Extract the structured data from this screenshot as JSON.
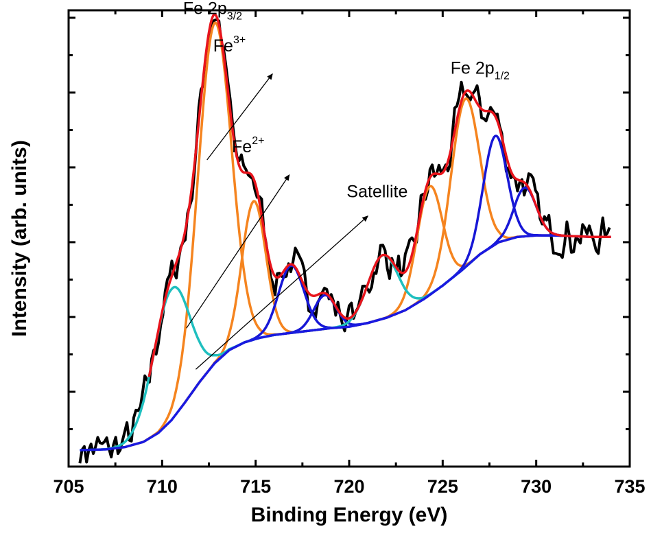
{
  "chart_data": {
    "type": "line",
    "xlabel": "Binding Energy (eV)",
    "ylabel": "Intensity (arb. units)",
    "xlim": [
      705,
      735
    ],
    "ylim": [
      0,
      6.1
    ],
    "x_ticks": [
      "705",
      "710",
      "715",
      "720",
      "725",
      "730",
      "735"
    ],
    "y_tick_labels_shown": false,
    "grid": false,
    "legend": "none",
    "colors": {
      "raw": "#000000",
      "envelope": "#e8141c",
      "fe3": "#f5841f",
      "fe2": "#1717d6",
      "satellite": "#1fbfbf",
      "background": "#1a1ae0"
    },
    "background": {
      "x": [
        705.6,
        707.0,
        708.0,
        709.0,
        709.8,
        710.5,
        711.2,
        712.0,
        712.8,
        713.6,
        714.4,
        715.2,
        716.0,
        717.0,
        718.0,
        719.0,
        720.0,
        721.0,
        722.0,
        723.0,
        724.0,
        725.0,
        726.0,
        727.0,
        728.0,
        729.0,
        730.0,
        731.0,
        732.0,
        733.0,
        734.0
      ],
      "values": [
        0.22,
        0.23,
        0.26,
        0.33,
        0.45,
        0.62,
        0.85,
        1.13,
        1.38,
        1.56,
        1.66,
        1.72,
        1.76,
        1.79,
        1.82,
        1.85,
        1.87,
        1.92,
        1.99,
        2.09,
        2.24,
        2.42,
        2.62,
        2.84,
        3.0,
        3.07,
        3.09,
        3.09,
        3.08,
        3.07,
        3.07
      ]
    },
    "components": [
      {
        "label": "Fe3+",
        "color_key": "fe3",
        "center": 712.8,
        "height": 4.55,
        "fwhm": 2.1
      },
      {
        "label": "Fe3+",
        "color_key": "fe3",
        "center": 714.9,
        "height": 1.85,
        "fwhm": 1.5
      },
      {
        "label": "Fe3+",
        "color_key": "fe3",
        "center": 724.3,
        "height": 1.45,
        "fwhm": 1.6
      },
      {
        "label": "Fe3+",
        "color_key": "fe3",
        "center": 726.2,
        "height": 2.25,
        "fwhm": 1.8
      },
      {
        "label": "Fe2+",
        "color_key": "fe2",
        "center": 716.9,
        "height": 0.9,
        "fwhm": 1.6
      },
      {
        "label": "Fe2+",
        "color_key": "fe2",
        "center": 718.7,
        "height": 0.45,
        "fwhm": 1.4
      },
      {
        "label": "Fe2+",
        "color_key": "fe2",
        "center": 727.8,
        "height": 1.45,
        "fwhm": 1.5
      },
      {
        "label": "Fe2+",
        "color_key": "fe2",
        "center": 729.4,
        "height": 0.65,
        "fwhm": 1.4
      },
      {
        "label": "Satellite",
        "color_key": "satellite",
        "center": 710.5,
        "height": 1.75,
        "fwhm": 2.3
      },
      {
        "label": "Satellite",
        "color_key": "satellite",
        "center": 721.8,
        "height": 0.85,
        "fwhm": 1.9
      }
    ],
    "raw_noise": {
      "amplitude": 0.32,
      "seed": 7
    },
    "annotations": {
      "fe2p32": {
        "main": "Fe 2p",
        "sub": "3/2",
        "x": 712.7,
        "y": 6.05
      },
      "fe2p12": {
        "main": "Fe 2p",
        "sub": "1/2",
        "x": 727.0,
        "y": 5.25
      },
      "fe3": {
        "main": "Fe",
        "sup": "3+",
        "x": 713.6,
        "y": 5.55
      },
      "fe2": {
        "main": "Fe",
        "sup": "2+",
        "x": 714.6,
        "y": 4.2
      },
      "sat": {
        "main": "Satellite",
        "x": 721.5,
        "y": 3.6
      }
    },
    "arrows": [
      {
        "from": [
          712.4,
          4.1
        ],
        "to": [
          715.9,
          5.25
        ]
      },
      {
        "from": [
          711.3,
          1.85
        ],
        "to": [
          716.8,
          3.9
        ]
      },
      {
        "from": [
          711.8,
          1.3
        ],
        "to": [
          721.0,
          3.35
        ]
      }
    ]
  }
}
